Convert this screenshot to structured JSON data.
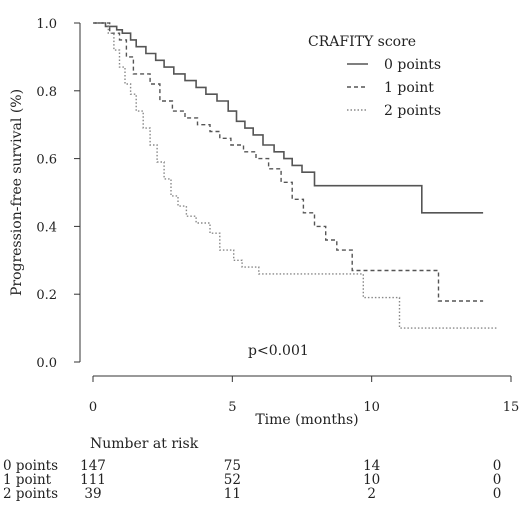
{
  "chart_data": {
    "type": "line",
    "xlabel": "Time (months)",
    "ylabel": "Progression-free survival (%)",
    "xlim": [
      0,
      15
    ],
    "ylim": [
      0,
      1.0
    ],
    "x_ticks": [
      "0",
      "5",
      "10",
      "15"
    ],
    "y_ticks": [
      "0.0",
      "0.2",
      "0.4",
      "0.6",
      "0.8",
      "1.0"
    ],
    "legend": {
      "title": "CRAFITY score",
      "placement": "top-right"
    },
    "annotation": "p<0.001",
    "series": [
      {
        "name": "0 points",
        "line_style": "solid",
        "color": "#555555",
        "points": [
          [
            0,
            1.0
          ],
          [
            0.45,
            1.0
          ],
          [
            0.45,
            0.99
          ],
          [
            0.85,
            0.99
          ],
          [
            0.85,
            0.98
          ],
          [
            1.05,
            0.98
          ],
          [
            1.05,
            0.97
          ],
          [
            1.35,
            0.97
          ],
          [
            1.35,
            0.95
          ],
          [
            1.55,
            0.95
          ],
          [
            1.55,
            0.93
          ],
          [
            1.9,
            0.93
          ],
          [
            1.9,
            0.91
          ],
          [
            2.25,
            0.91
          ],
          [
            2.25,
            0.89
          ],
          [
            2.55,
            0.89
          ],
          [
            2.55,
            0.87
          ],
          [
            2.9,
            0.87
          ],
          [
            2.9,
            0.85
          ],
          [
            3.3,
            0.85
          ],
          [
            3.3,
            0.83
          ],
          [
            3.7,
            0.83
          ],
          [
            3.7,
            0.81
          ],
          [
            4.05,
            0.81
          ],
          [
            4.05,
            0.79
          ],
          [
            4.45,
            0.79
          ],
          [
            4.45,
            0.77
          ],
          [
            4.85,
            0.77
          ],
          [
            4.85,
            0.74
          ],
          [
            5.15,
            0.74
          ],
          [
            5.15,
            0.71
          ],
          [
            5.45,
            0.71
          ],
          [
            5.45,
            0.69
          ],
          [
            5.75,
            0.69
          ],
          [
            5.75,
            0.67
          ],
          [
            6.1,
            0.67
          ],
          [
            6.1,
            0.64
          ],
          [
            6.5,
            0.64
          ],
          [
            6.5,
            0.62
          ],
          [
            6.85,
            0.62
          ],
          [
            6.85,
            0.6
          ],
          [
            7.15,
            0.6
          ],
          [
            7.15,
            0.58
          ],
          [
            7.5,
            0.58
          ],
          [
            7.5,
            0.56
          ],
          [
            7.95,
            0.56
          ],
          [
            7.95,
            0.52
          ],
          [
            11.8,
            0.52
          ],
          [
            11.8,
            0.44
          ],
          [
            14,
            0.44
          ]
        ]
      },
      {
        "name": "1 point",
        "line_style": "dashed",
        "color": "#555555",
        "points": [
          [
            0,
            1.0
          ],
          [
            0.6,
            1.0
          ],
          [
            0.6,
            0.97
          ],
          [
            0.95,
            0.97
          ],
          [
            0.95,
            0.95
          ],
          [
            1.2,
            0.95
          ],
          [
            1.2,
            0.9
          ],
          [
            1.45,
            0.9
          ],
          [
            1.45,
            0.85
          ],
          [
            2.05,
            0.85
          ],
          [
            2.05,
            0.82
          ],
          [
            2.4,
            0.82
          ],
          [
            2.4,
            0.77
          ],
          [
            2.85,
            0.77
          ],
          [
            2.85,
            0.74
          ],
          [
            3.3,
            0.74
          ],
          [
            3.3,
            0.72
          ],
          [
            3.75,
            0.72
          ],
          [
            3.75,
            0.7
          ],
          [
            4.2,
            0.7
          ],
          [
            4.2,
            0.68
          ],
          [
            4.55,
            0.68
          ],
          [
            4.55,
            0.66
          ],
          [
            4.95,
            0.66
          ],
          [
            4.95,
            0.64
          ],
          [
            5.4,
            0.64
          ],
          [
            5.4,
            0.62
          ],
          [
            5.85,
            0.62
          ],
          [
            5.85,
            0.6
          ],
          [
            6.3,
            0.6
          ],
          [
            6.3,
            0.57
          ],
          [
            6.75,
            0.57
          ],
          [
            6.75,
            0.53
          ],
          [
            7.15,
            0.53
          ],
          [
            7.15,
            0.48
          ],
          [
            7.55,
            0.48
          ],
          [
            7.55,
            0.44
          ],
          [
            7.95,
            0.44
          ],
          [
            7.95,
            0.4
          ],
          [
            8.35,
            0.4
          ],
          [
            8.35,
            0.36
          ],
          [
            8.75,
            0.36
          ],
          [
            8.75,
            0.33
          ],
          [
            9.3,
            0.33
          ],
          [
            9.3,
            0.27
          ],
          [
            12.4,
            0.27
          ],
          [
            12.4,
            0.18
          ],
          [
            14,
            0.18
          ]
        ]
      },
      {
        "name": "2 points",
        "line_style": "dotted",
        "color": "#888888",
        "points": [
          [
            0,
            1.0
          ],
          [
            0.55,
            1.0
          ],
          [
            0.55,
            0.97
          ],
          [
            0.75,
            0.97
          ],
          [
            0.75,
            0.92
          ],
          [
            0.95,
            0.92
          ],
          [
            0.95,
            0.87
          ],
          [
            1.15,
            0.87
          ],
          [
            1.15,
            0.82
          ],
          [
            1.35,
            0.82
          ],
          [
            1.35,
            0.79
          ],
          [
            1.55,
            0.79
          ],
          [
            1.55,
            0.74
          ],
          [
            1.8,
            0.74
          ],
          [
            1.8,
            0.69
          ],
          [
            2.05,
            0.69
          ],
          [
            2.05,
            0.64
          ],
          [
            2.3,
            0.64
          ],
          [
            2.3,
            0.59
          ],
          [
            2.55,
            0.59
          ],
          [
            2.55,
            0.54
          ],
          [
            2.8,
            0.54
          ],
          [
            2.8,
            0.49
          ],
          [
            3.05,
            0.49
          ],
          [
            3.05,
            0.46
          ],
          [
            3.35,
            0.46
          ],
          [
            3.35,
            0.43
          ],
          [
            3.7,
            0.43
          ],
          [
            3.7,
            0.41
          ],
          [
            4.2,
            0.41
          ],
          [
            4.2,
            0.38
          ],
          [
            4.55,
            0.38
          ],
          [
            4.55,
            0.33
          ],
          [
            5.05,
            0.33
          ],
          [
            5.05,
            0.3
          ],
          [
            5.35,
            0.3
          ],
          [
            5.35,
            0.28
          ],
          [
            5.95,
            0.28
          ],
          [
            5.95,
            0.26
          ],
          [
            9.7,
            0.26
          ],
          [
            9.7,
            0.19
          ],
          [
            11.0,
            0.19
          ],
          [
            11.0,
            0.1
          ],
          [
            14.5,
            0.1
          ]
        ]
      }
    ]
  },
  "risk_table": {
    "title": "Number at risk",
    "times": [
      0,
      5,
      10,
      14.5
    ],
    "rows": [
      {
        "label": "0 points",
        "values": [
          "147",
          "75",
          "14",
          "0"
        ]
      },
      {
        "label": "1 point",
        "values": [
          "111",
          "52",
          "10",
          "0"
        ]
      },
      {
        "label": "2 points",
        "values": [
          "39",
          "11",
          "2",
          "0"
        ]
      }
    ]
  }
}
